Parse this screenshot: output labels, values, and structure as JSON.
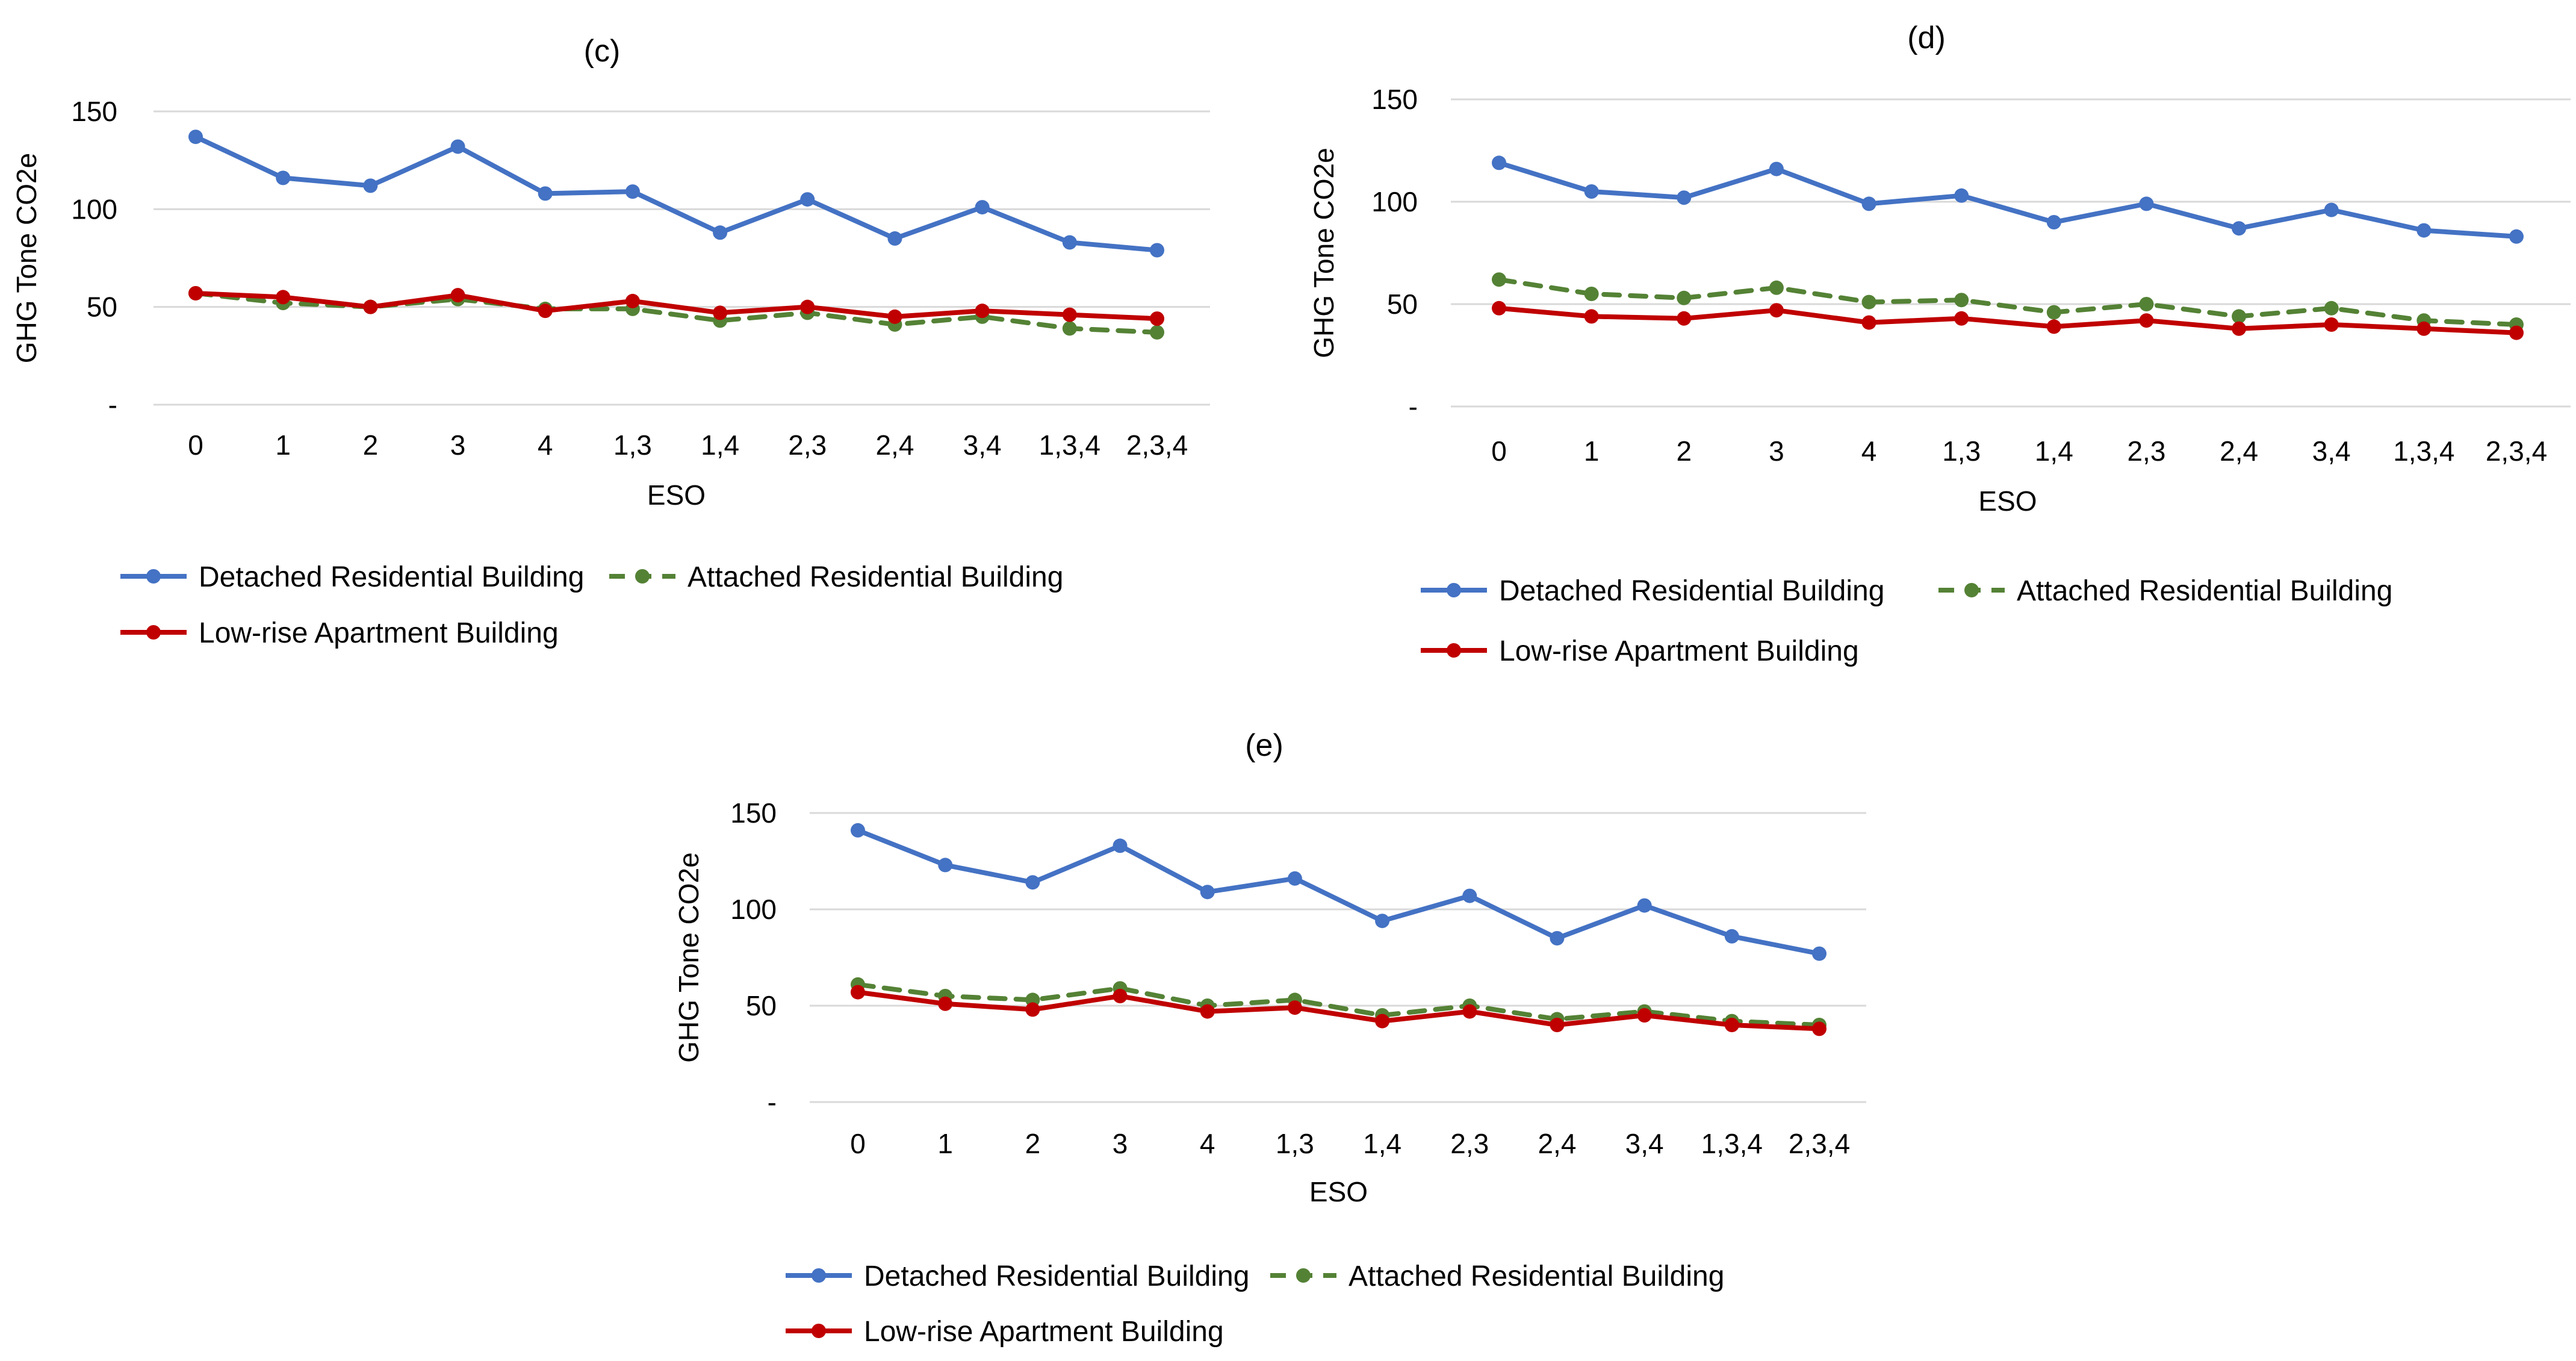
{
  "chart_data": [
    {
      "type": "line",
      "title": "(c)",
      "xlabel": "ESO",
      "ylabel": "GHG Tone CO2e",
      "ylim": [
        0,
        150
      ],
      "yticks": [
        "-",
        "50",
        "100",
        "150"
      ],
      "categories": [
        "0",
        "1",
        "2",
        "3",
        "4",
        "1,3",
        "1,4",
        "2,3",
        "2,4",
        "3,4",
        "1,3,4",
        "2,3,4"
      ],
      "series": [
        {
          "name": "Detached Residential Building",
          "color": "#4472C4",
          "dash": false,
          "values": [
            137,
            116,
            112,
            132,
            108,
            109,
            88,
            105,
            85,
            101,
            83,
            79
          ]
        },
        {
          "name": "Attached Residential Building",
          "color": "#548235",
          "dash": true,
          "values": [
            57,
            52,
            50,
            54,
            49,
            49,
            43,
            47,
            41,
            45,
            39,
            37
          ]
        },
        {
          "name": "Low-rise Apartment Building",
          "color": "#C00000",
          "dash": false,
          "values": [
            57,
            55,
            50,
            56,
            48,
            53,
            47,
            50,
            45,
            48,
            46,
            44
          ]
        }
      ]
    },
    {
      "type": "line",
      "title": "(d)",
      "xlabel": "ESO",
      "ylabel": "GHG Tone CO2e",
      "ylim": [
        0,
        150
      ],
      "yticks": [
        "-",
        "50",
        "100",
        "150"
      ],
      "categories": [
        "0",
        "1",
        "2",
        "3",
        "4",
        "1,3",
        "1,4",
        "2,3",
        "2,4",
        "3,4",
        "1,3,4",
        "2,3,4"
      ],
      "series": [
        {
          "name": "Detached Residential Building",
          "color": "#4472C4",
          "dash": false,
          "values": [
            119,
            105,
            102,
            116,
            99,
            103,
            90,
            99,
            87,
            96,
            86,
            83
          ]
        },
        {
          "name": "Attached Residential Building",
          "color": "#548235",
          "dash": true,
          "values": [
            62,
            55,
            53,
            58,
            51,
            52,
            46,
            50,
            44,
            48,
            42,
            40
          ]
        },
        {
          "name": "Low-rise Apartment Building",
          "color": "#C00000",
          "dash": false,
          "values": [
            48,
            44,
            43,
            47,
            41,
            43,
            39,
            42,
            38,
            40,
            38,
            36
          ]
        }
      ]
    },
    {
      "type": "line",
      "title": "(e)",
      "xlabel": "ESO",
      "ylabel": "GHG Tone CO2e",
      "ylim": [
        0,
        150
      ],
      "yticks": [
        "-",
        "50",
        "100",
        "150"
      ],
      "categories": [
        "0",
        "1",
        "2",
        "3",
        "4",
        "1,3",
        "1,4",
        "2,3",
        "2,4",
        "3,4",
        "1,3,4",
        "2,3,4"
      ],
      "series": [
        {
          "name": "Detached Residential Building",
          "color": "#4472C4",
          "dash": false,
          "values": [
            141,
            123,
            114,
            133,
            109,
            116,
            94,
            107,
            85,
            102,
            86,
            77
          ]
        },
        {
          "name": "Attached Residential Building",
          "color": "#548235",
          "dash": true,
          "values": [
            61,
            55,
            53,
            59,
            50,
            53,
            45,
            50,
            43,
            47,
            42,
            40
          ]
        },
        {
          "name": "Low-rise Apartment Building",
          "color": "#C00000",
          "dash": false,
          "values": [
            57,
            51,
            48,
            55,
            47,
            49,
            42,
            47,
            40,
            45,
            40,
            38
          ]
        }
      ]
    }
  ]
}
